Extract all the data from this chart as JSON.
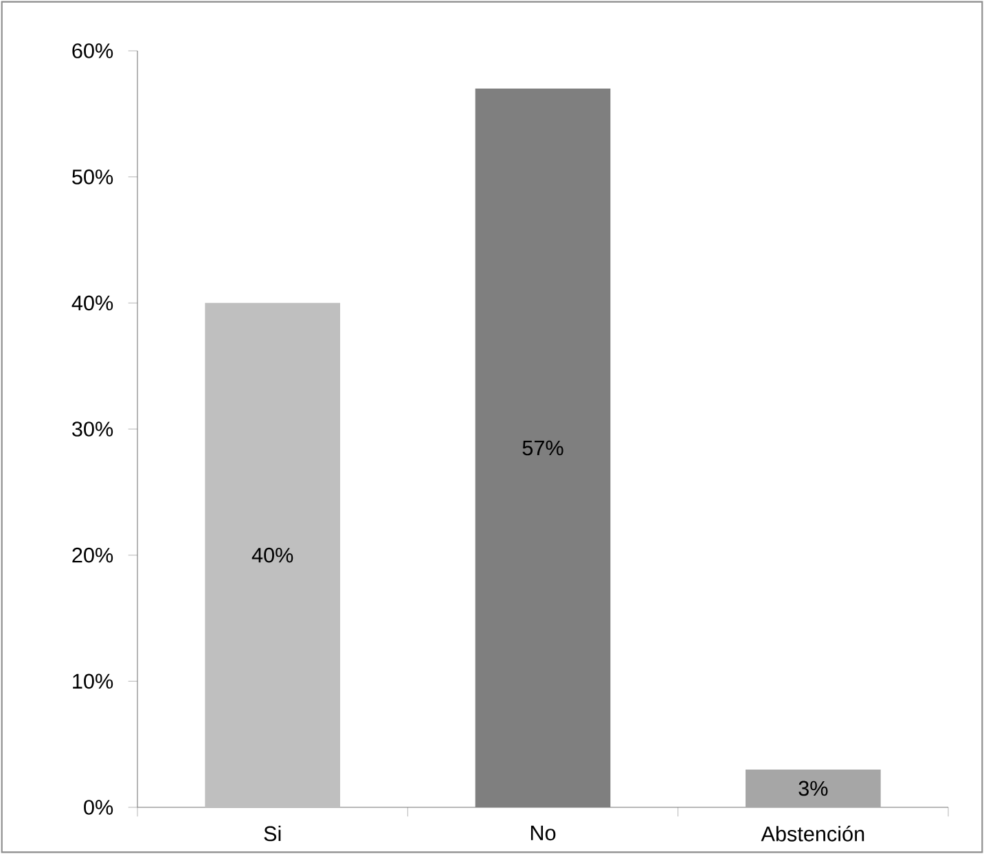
{
  "chart_data": {
    "type": "bar",
    "categories": [
      "Si",
      "No",
      "Abstención"
    ],
    "values": [
      40,
      57,
      3
    ],
    "colors": [
      "#bfbfbf",
      "#7f7f7f",
      "#a6a6a6"
    ],
    "value_labels": [
      "40%",
      "57%",
      "3%"
    ],
    "ylim": [
      0,
      60
    ],
    "yticks": [
      {
        "value": 0,
        "label": "0%"
      },
      {
        "value": 10,
        "label": "10%"
      },
      {
        "value": 20,
        "label": "20%"
      },
      {
        "value": 30,
        "label": "30%"
      },
      {
        "value": 40,
        "label": "40%"
      },
      {
        "value": 50,
        "label": "50%"
      },
      {
        "value": 60,
        "label": "60%"
      }
    ]
  }
}
